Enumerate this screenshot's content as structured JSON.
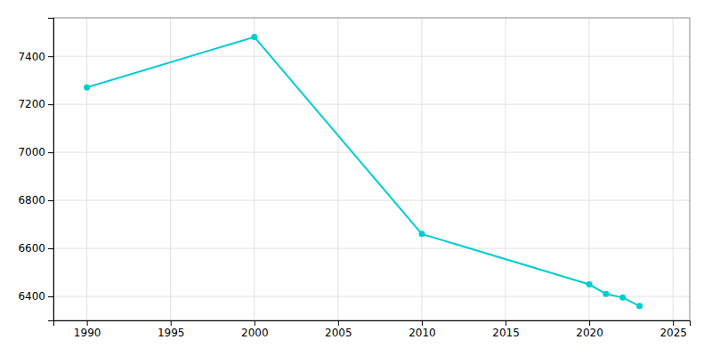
{
  "chart_data": {
    "type": "line",
    "x": [
      1990,
      2000,
      2010,
      2020,
      2021,
      2022,
      2023
    ],
    "values": [
      7270,
      7480,
      6660,
      6450,
      6410,
      6395,
      6360
    ],
    "color": "#00CED1",
    "marker": "circle",
    "xlim": [
      1988,
      2026
    ],
    "ylim": [
      6300,
      7560
    ],
    "xticks": [
      1990,
      1995,
      2000,
      2005,
      2010,
      2015,
      2020,
      2025
    ],
    "yticks": [
      6400,
      6600,
      6800,
      7000,
      7200,
      7400
    ],
    "grid": true
  }
}
